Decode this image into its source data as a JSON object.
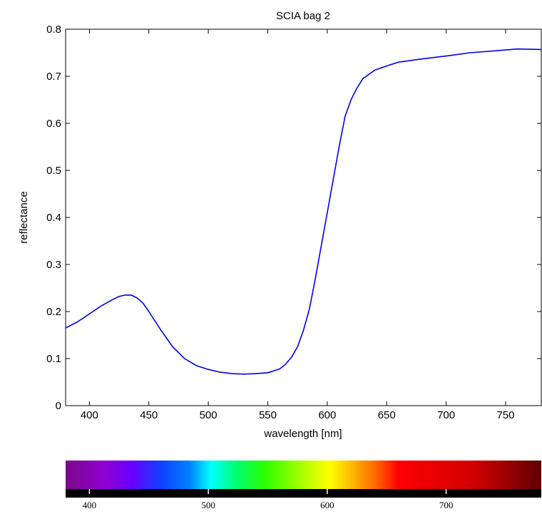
{
  "chart_data": {
    "type": "line",
    "title": "SCIA bag 2",
    "xlabel": "wavelength [nm]",
    "ylabel": "reflectance",
    "xlim": [
      380,
      780
    ],
    "ylim": [
      0,
      0.8
    ],
    "xticks": [
      400,
      450,
      500,
      550,
      600,
      650,
      700,
      750
    ],
    "yticks": [
      0,
      0.1,
      0.2,
      0.3,
      0.4,
      0.5,
      0.6,
      0.7,
      0.8
    ],
    "ytick_labels": [
      "0",
      "0.1",
      "0.2",
      "0.3",
      "0.4",
      "0.5",
      "0.6",
      "0.7",
      "0.8"
    ],
    "grid": false,
    "series": [
      {
        "color": "#0000ee",
        "x": [
          380,
          390,
          400,
          410,
          420,
          425,
          430,
          435,
          440,
          445,
          450,
          460,
          470,
          480,
          490,
          500,
          510,
          520,
          530,
          540,
          550,
          560,
          565,
          570,
          575,
          580,
          585,
          590,
          595,
          600,
          605,
          610,
          615,
          620,
          625,
          630,
          640,
          650,
          660,
          680,
          700,
          720,
          740,
          760,
          780
        ],
        "y": [
          0.165,
          0.178,
          0.195,
          0.212,
          0.226,
          0.232,
          0.235,
          0.235,
          0.229,
          0.218,
          0.2,
          0.161,
          0.125,
          0.1,
          0.085,
          0.077,
          0.071,
          0.068,
          0.067,
          0.068,
          0.07,
          0.078,
          0.088,
          0.103,
          0.125,
          0.16,
          0.205,
          0.27,
          0.34,
          0.41,
          0.48,
          0.55,
          0.615,
          0.65,
          0.675,
          0.695,
          0.713,
          0.722,
          0.73,
          0.737,
          0.743,
          0.75,
          0.754,
          0.758,
          0.757
        ]
      }
    ],
    "spectrum": {
      "tick_values": [
        400,
        500,
        600,
        700
      ],
      "tick_labels": [
        "400",
        "500",
        "600",
        "700"
      ]
    }
  }
}
